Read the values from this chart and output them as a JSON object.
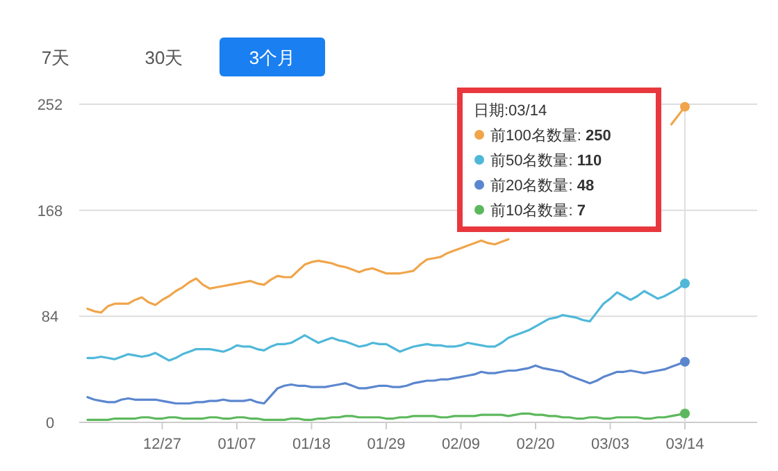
{
  "chart_data": {
    "type": "line",
    "annotations": [
      "7天",
      "30天",
      "3个月",
      "250",
      "110",
      "48",
      "7"
    ],
    "legend_title": "日期:03/14",
    "legend": "top right",
    "grid": "y",
    "categories": [
      null,
      null,
      null,
      null,
      null,
      null,
      null,
      null,
      null,
      null,
      null,
      "12/27",
      null,
      null,
      null,
      null,
      null,
      null,
      null,
      null,
      null,
      null,
      "01/07",
      null,
      null,
      null,
      null,
      null,
      null,
      null,
      null,
      null,
      null,
      "01/18",
      null,
      null,
      null,
      null,
      null,
      null,
      null,
      null,
      null,
      null,
      "01/29",
      null,
      null,
      null,
      null,
      null,
      null,
      null,
      null,
      null,
      null,
      "02/09",
      null,
      null,
      null,
      null,
      null,
      null,
      null,
      null,
      null,
      null,
      "02/20",
      null,
      null,
      null,
      null,
      null,
      null,
      null,
      null,
      null,
      null,
      "03/03",
      null,
      null,
      null,
      null,
      null,
      null,
      null,
      null,
      null,
      null,
      "03/14"
    ],
    "ylim": [
      0,
      252
    ],
    "yticks": [
      0,
      84,
      168,
      252
    ],
    "ref_lines": [
      {
        "axis": "x",
        "value": "03/14",
        "color": "#e0e0e0"
      }
    ],
    "series": [
      {
        "name": "前100名数量:",
        "color": "#f0a54a",
        "values": [
          90,
          88,
          87,
          92,
          94,
          94,
          94,
          97,
          99,
          95,
          93,
          97,
          100,
          104,
          107,
          111,
          114,
          109,
          106,
          107,
          108,
          109,
          110,
          111,
          112,
          110,
          109,
          113,
          116,
          115,
          115,
          120,
          125,
          127,
          128,
          127,
          126,
          124,
          123,
          121,
          119,
          121,
          122,
          120,
          118,
          118,
          118,
          119,
          120,
          125,
          129,
          130,
          131,
          134,
          136,
          138,
          140,
          142,
          144,
          142,
          141,
          143,
          145,
          null,
          null,
          null,
          null,
          null,
          null,
          null,
          null,
          null,
          null,
          null,
          null,
          null,
          null,
          null,
          null,
          null,
          null,
          null,
          null,
          null,
          null,
          null,
          null,
          null,
          null
        ]
      },
      {
        "name": "前50名数量:",
        "color": "#4fb8d9",
        "values": [
          51,
          51,
          52,
          51,
          50,
          52,
          54,
          53,
          52,
          53,
          55,
          52,
          49,
          51,
          54,
          56,
          58,
          58,
          58,
          57,
          56,
          58,
          61,
          60,
          60,
          58,
          57,
          60,
          62,
          62,
          63,
          66,
          69,
          66,
          63,
          65,
          67,
          65,
          64,
          62,
          60,
          61,
          63,
          62,
          62,
          59,
          56,
          58,
          60,
          61,
          62,
          61,
          61,
          60,
          60,
          61,
          63,
          62,
          61,
          60,
          60,
          63,
          67,
          69,
          71,
          73,
          76,
          79,
          82,
          83,
          85,
          84,
          83,
          81,
          80,
          87,
          94,
          98,
          103,
          100,
          97,
          100,
          104,
          101,
          98,
          100,
          103,
          106,
          110
        ]
      },
      {
        "name": "前20名数量:",
        "color": "#5b86cf",
        "values": [
          20,
          18,
          17,
          16,
          16,
          18,
          19,
          18,
          18,
          18,
          18,
          17,
          16,
          15,
          15,
          15,
          16,
          16,
          17,
          17,
          18,
          17,
          17,
          17,
          18,
          16,
          15,
          21,
          27,
          29,
          30,
          29,
          29,
          28,
          28,
          28,
          29,
          30,
          31,
          29,
          27,
          27,
          28,
          29,
          29,
          28,
          28,
          29,
          31,
          32,
          33,
          33,
          34,
          34,
          35,
          36,
          37,
          38,
          40,
          39,
          39,
          40,
          41,
          41,
          42,
          43,
          45,
          43,
          42,
          41,
          40,
          37,
          35,
          33,
          31,
          33,
          36,
          38,
          40,
          40,
          41,
          40,
          39,
          40,
          41,
          42,
          44,
          46,
          48
        ]
      },
      {
        "color": "#f0a54a",
        "values": [
          null,
          null,
          null,
          null,
          null,
          null,
          null,
          null,
          null,
          null,
          null,
          null,
          null,
          null,
          null,
          null,
          null,
          null,
          null,
          null,
          null,
          null,
          null,
          null,
          null,
          null,
          null,
          null,
          null,
          null,
          null,
          null,
          null,
          null,
          null,
          null,
          null,
          null,
          null,
          null,
          null,
          null,
          null,
          null,
          null,
          null,
          null,
          null,
          null,
          null,
          null,
          null,
          null,
          null,
          null,
          null,
          null,
          null,
          null,
          null,
          null,
          null,
          null,
          null,
          null,
          null,
          null,
          null,
          null,
          null,
          null,
          null,
          null,
          null,
          null,
          null,
          null,
          null,
          null,
          null,
          null,
          null,
          null,
          null,
          null,
          null,
          236,
          243,
          250
        ]
      },
      {
        "name": "前10名数量:",
        "color": "#5cb85c",
        "values": [
          2,
          2,
          2,
          2,
          3,
          3,
          3,
          3,
          4,
          4,
          3,
          3,
          4,
          4,
          3,
          3,
          3,
          3,
          4,
          4,
          3,
          3,
          4,
          4,
          3,
          3,
          2,
          2,
          2,
          2,
          3,
          3,
          2,
          2,
          3,
          3,
          4,
          4,
          5,
          5,
          4,
          4,
          4,
          4,
          3,
          3,
          4,
          4,
          5,
          5,
          5,
          5,
          4,
          4,
          5,
          5,
          5,
          5,
          6,
          6,
          6,
          6,
          5,
          6,
          7,
          7,
          6,
          6,
          5,
          5,
          4,
          4,
          3,
          3,
          4,
          4,
          3,
          3,
          4,
          4,
          4,
          4,
          3,
          3,
          4,
          4,
          5,
          6,
          7
        ]
      }
    ]
  }
}
